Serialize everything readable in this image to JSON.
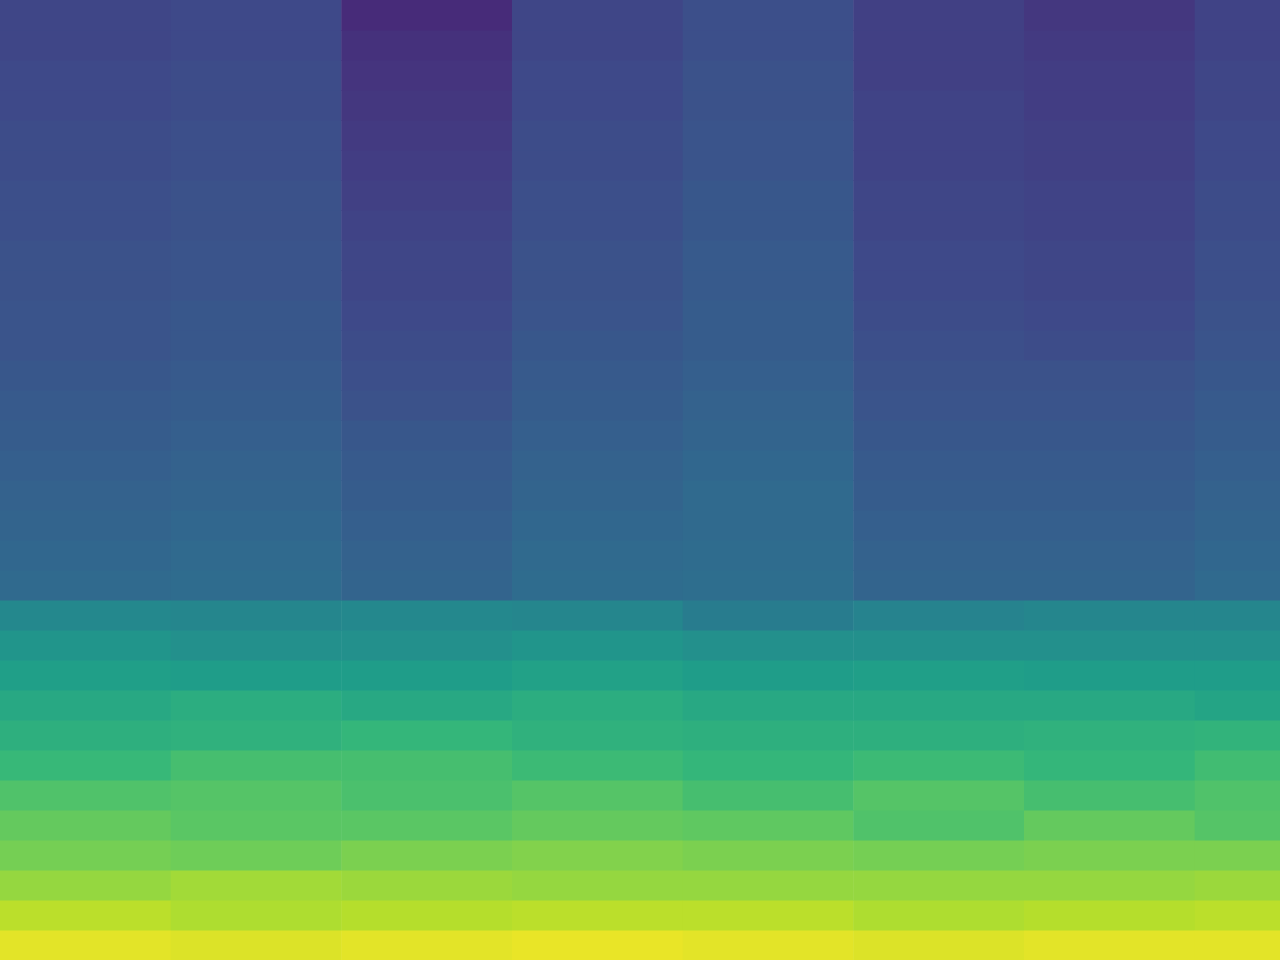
{
  "chart_data": {
    "type": "heatmap",
    "tick_labels": false,
    "grid": false,
    "x_edges": [
      0,
      1,
      2,
      3,
      4,
      5,
      6,
      7,
      8
    ],
    "y_edges": [
      0,
      1,
      2,
      3,
      4,
      5,
      6,
      7,
      8,
      9,
      10,
      11,
      12,
      13,
      14,
      15,
      16,
      17,
      18,
      19,
      20,
      21,
      22,
      23,
      24,
      25,
      26,
      27,
      28,
      29,
      30,
      31,
      32
    ],
    "xlim": [
      0,
      7.5
    ],
    "ylim": [
      0,
      32
    ],
    "zlim": [
      0,
      1
    ],
    "cells": [
      [
        0.96,
        0.9,
        0.84,
        0.79,
        0.76,
        0.72,
        0.67,
        0.63,
        0.6,
        0.56,
        0.52,
        0.47,
        0.34,
        0.33,
        0.32,
        0.31,
        0.3,
        0.29,
        0.28,
        0.27,
        0.26,
        0.26,
        0.25,
        0.25,
        0.24,
        0.24,
        0.23,
        0.23,
        0.22,
        0.22,
        0.21,
        0.21
      ],
      [
        0.95,
        0.88,
        0.86,
        0.78,
        0.74,
        0.73,
        0.7,
        0.64,
        0.62,
        0.55,
        0.5,
        0.46,
        0.35,
        0.34,
        0.33,
        0.32,
        0.31,
        0.3,
        0.29,
        0.28,
        0.27,
        0.27,
        0.26,
        0.26,
        0.25,
        0.25,
        0.24,
        0.24,
        0.23,
        0.23,
        0.22,
        0.22
      ],
      [
        0.96,
        0.89,
        0.85,
        0.8,
        0.74,
        0.71,
        0.7,
        0.66,
        0.6,
        0.55,
        0.5,
        0.47,
        0.32,
        0.31,
        0.3,
        0.29,
        0.28,
        0.27,
        0.25,
        0.24,
        0.23,
        0.22,
        0.21,
        0.21,
        0.2,
        0.19,
        0.18,
        0.17,
        0.16,
        0.15,
        0.14,
        0.12
      ],
      [
        0.97,
        0.9,
        0.84,
        0.81,
        0.76,
        0.73,
        0.68,
        0.64,
        0.62,
        0.57,
        0.52,
        0.46,
        0.35,
        0.34,
        0.33,
        0.32,
        0.31,
        0.3,
        0.29,
        0.28,
        0.27,
        0.26,
        0.25,
        0.25,
        0.24,
        0.24,
        0.23,
        0.23,
        0.22,
        0.22,
        0.21,
        0.21
      ],
      [
        0.96,
        0.9,
        0.84,
        0.8,
        0.75,
        0.7,
        0.66,
        0.63,
        0.6,
        0.55,
        0.5,
        0.42,
        0.36,
        0.35,
        0.34,
        0.34,
        0.33,
        0.32,
        0.31,
        0.3,
        0.29,
        0.29,
        0.28,
        0.28,
        0.27,
        0.27,
        0.26,
        0.26,
        0.25,
        0.25,
        0.24,
        0.24
      ],
      [
        0.95,
        0.88,
        0.84,
        0.79,
        0.72,
        0.73,
        0.68,
        0.63,
        0.6,
        0.56,
        0.5,
        0.45,
        0.32,
        0.31,
        0.3,
        0.29,
        0.28,
        0.27,
        0.26,
        0.25,
        0.24,
        0.23,
        0.22,
        0.22,
        0.21,
        0.21,
        0.2,
        0.2,
        0.2,
        0.19,
        0.19,
        0.19
      ],
      [
        0.96,
        0.89,
        0.84,
        0.8,
        0.76,
        0.7,
        0.66,
        0.64,
        0.6,
        0.55,
        0.5,
        0.46,
        0.32,
        0.31,
        0.3,
        0.29,
        0.28,
        0.27,
        0.26,
        0.25,
        0.23,
        0.22,
        0.21,
        0.21,
        0.2,
        0.2,
        0.19,
        0.19,
        0.18,
        0.18,
        0.17,
        0.16
      ],
      [
        0.96,
        0.9,
        0.85,
        0.8,
        0.73,
        0.72,
        0.69,
        0.65,
        0.58,
        0.55,
        0.5,
        0.46,
        0.34,
        0.33,
        0.32,
        0.31,
        0.3,
        0.29,
        0.28,
        0.27,
        0.26,
        0.25,
        0.24,
        0.24,
        0.23,
        0.23,
        0.22,
        0.22,
        0.21,
        0.21,
        0.2,
        0.2
      ]
    ]
  }
}
